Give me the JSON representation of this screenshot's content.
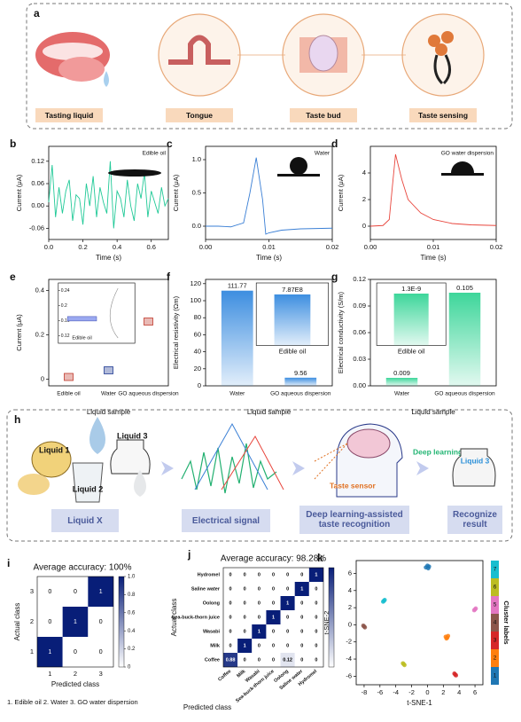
{
  "panel_a": {
    "label": "a",
    "items": [
      "Tasting liquid",
      "Tongue",
      "Taste bud",
      "Taste sensing"
    ]
  },
  "panel_h": {
    "label": "h",
    "liquids": [
      "Liquid 1",
      "Liquid 2",
      "Liquid 3"
    ],
    "taste_sensor": "Taste sensor",
    "deep_learning": "Deep learning",
    "result_liquid": "Liquid 3",
    "steps": [
      "Liquid X",
      "Electrical signal",
      "Deep learning-assisted taste recognition",
      "Recognize result"
    ]
  },
  "chart_data": [
    {
      "type": "line",
      "panel": "b",
      "annotation": "Edible oil",
      "color": "#20c997",
      "x": [
        0,
        0.02,
        0.04,
        0.06,
        0.08,
        0.1,
        0.12,
        0.14,
        0.16,
        0.18,
        0.2,
        0.22,
        0.24,
        0.26,
        0.28,
        0.3,
        0.32,
        0.34,
        0.36,
        0.38,
        0.4,
        0.42,
        0.44,
        0.46,
        0.48,
        0.5,
        0.52,
        0.54,
        0.56,
        0.58,
        0.6,
        0.62,
        0.64,
        0.66,
        0.68,
        0.7
      ],
      "values": [
        0.01,
        0.11,
        -0.03,
        0.05,
        -0.02,
        0.04,
        0.07,
        -0.04,
        0.03,
        0.02,
        -0.05,
        0.06,
        0.0,
        0.08,
        -0.03,
        0.05,
        0.01,
        -0.02,
        0.12,
        -0.06,
        0.04,
        0.02,
        -0.03,
        0.07,
        0.0,
        -0.04,
        0.06,
        0.02,
        0.09,
        -0.03,
        0.04,
        0.01,
        -0.02,
        0.05,
        0.0,
        0.02
      ],
      "xlim": [
        0,
        0.7
      ],
      "ylim": [
        -0.09,
        0.16
      ],
      "xticks": [
        {
          "value": 0,
          "label": "0.0"
        },
        0.2,
        0.4,
        0.6
      ],
      "yticks": [
        -0.06,
        {
          "value": 0,
          "label": "0.00"
        },
        0.06,
        0.12
      ],
      "x_label": "Time (s)",
      "y_label": "Current (μA)"
    },
    {
      "type": "line",
      "panel": "c",
      "annotation": "Water",
      "color": "#3a7fd5",
      "x": [
        0,
        0.002,
        0.004,
        0.006,
        0.007,
        0.008,
        0.009,
        0.0095,
        0.01,
        0.012,
        0.015,
        0.02
      ],
      "values": [
        0,
        0,
        -0.01,
        0.05,
        0.5,
        1.03,
        0.4,
        -0.12,
        -0.1,
        -0.06,
        -0.04,
        -0.03
      ],
      "xlim": [
        0,
        0.02
      ],
      "ylim": [
        -0.2,
        1.2
      ],
      "xticks": [
        {
          "value": 0,
          "label": "0.00"
        },
        0.01,
        0.02
      ],
      "yticks": [
        {
          "value": 0,
          "label": "0.0"
        },
        0.5,
        {
          "value": 1,
          "label": "1.0"
        }
      ],
      "x_label": "Time (s)",
      "y_label": "Current (μA)"
    },
    {
      "type": "line",
      "panel": "d",
      "annotation": "GO water dispersion",
      "color": "#e8453c",
      "x": [
        0,
        0.002,
        0.003,
        0.0035,
        0.004,
        0.005,
        0.006,
        0.008,
        0.01,
        0.013,
        0.016,
        0.02
      ],
      "values": [
        0,
        0.05,
        0.5,
        3,
        5.4,
        3.5,
        2,
        1,
        0.5,
        0.2,
        0.1,
        0.05
      ],
      "xlim": [
        0,
        0.02
      ],
      "ylim": [
        -1,
        6
      ],
      "xticks": [
        {
          "value": 0,
          "label": "0.00"
        },
        0.01,
        0.02
      ],
      "yticks": [
        0,
        2,
        4
      ],
      "x_label": "Time (s)",
      "y_label": "Current (μA)"
    },
    {
      "type": "dot",
      "panel": "e",
      "categories": [
        "Edible oil",
        "Water",
        "GO aqueous dispersion"
      ],
      "values": [
        0.01,
        0.04,
        0.26
      ],
      "colors": [
        "#c0392b",
        "#1f3a93",
        "#c0392b"
      ],
      "ylim": [
        -0.03,
        0.45
      ],
      "yticks": [
        0,
        0.2,
        0.4
      ],
      "x_label": "Liquid sample",
      "y_label": "Current (μA)",
      "inset": {
        "category": "Edible oil",
        "value": 0.165,
        "ylim": [
          0.1,
          0.26
        ],
        "yticks": [
          0.12,
          0.16,
          0.2,
          0.24
        ]
      }
    },
    {
      "type": "bar",
      "panel": "f",
      "categories": [
        "Water",
        "GO aqueous dispersion"
      ],
      "values": [
        111.77,
        9.56
      ],
      "color": "#3d8ee0",
      "ylim": [
        0,
        125
      ],
      "yticks": [
        0,
        20,
        40,
        60,
        80,
        100,
        120
      ],
      "x_label": "Liquid sample",
      "y_label": "Electrical resistivity (Ωm)",
      "inset": {
        "categories": [
          "Edible oil"
        ],
        "values": [
          787000000
        ],
        "value_labels": [
          "7.87E8"
        ],
        "ylim": [
          0,
          800000000
        ]
      }
    },
    {
      "type": "bar",
      "panel": "g",
      "categories": [
        "Water",
        "GO aqueous dispersion"
      ],
      "values": [
        0.009,
        0.105
      ],
      "color": "#3dd69a",
      "ylim": [
        0,
        0.12
      ],
      "yticks": [
        {
          "value": 0,
          "label": "0.00"
        },
        0.03,
        0.06,
        0.09,
        0.12
      ],
      "x_label": "Liquid sample",
      "y_label": "Electrical conductivity (S/m)",
      "inset": {
        "categories": [
          "Edible oil"
        ],
        "values": [
          1.3e-09
        ],
        "value_labels": [
          "1.3E-9"
        ],
        "ylim": [
          0,
          1.3e-09
        ]
      }
    },
    {
      "type": "heatmap",
      "panel": "i",
      "title": "Average accuracy: 100%",
      "categories": [
        "1",
        "2",
        "3"
      ],
      "values": [
        [
          1,
          0,
          0
        ],
        [
          0,
          1,
          0
        ],
        [
          0,
          0,
          1
        ]
      ],
      "clim": [
        0,
        1
      ],
      "cbar_ticks": [
        0,
        0.2,
        0.4,
        0.6,
        0.8,
        {
          "value": 1,
          "label": "1.0"
        }
      ],
      "x_label": "Predicted class",
      "y_label": "Actual class",
      "caption": "1. Edible oil  2. Water  3. GO water dispersion"
    },
    {
      "type": "heatmap",
      "panel": "j",
      "title": "Average accuracy: 98.28%",
      "categories": [
        "Coffee",
        "Milk",
        "Wasabi",
        "Sea-buck-thorn juice",
        "Oolong",
        "Saline water",
        "Hydromel"
      ],
      "values": [
        [
          0.88,
          0,
          0,
          0,
          0.12,
          0,
          0
        ],
        [
          0,
          1,
          0,
          0,
          0,
          0,
          0
        ],
        [
          0,
          0,
          1,
          0,
          0,
          0,
          0
        ],
        [
          0,
          0,
          0,
          1,
          0,
          0,
          0
        ],
        [
          0,
          0,
          0,
          0,
          1,
          0,
          0
        ],
        [
          0,
          0,
          0,
          0,
          0,
          1,
          0
        ],
        [
          0,
          0,
          0,
          0,
          0,
          0,
          1
        ]
      ],
      "clim": [
        0,
        1
      ],
      "x_label": "Predicted class",
      "y_label": "Actual class"
    },
    {
      "type": "scatter",
      "panel": "k",
      "x_label": "t-SNE-1",
      "y_label": "t-SNE-2",
      "colorbar_label": "Cluster labels",
      "xlim": [
        -9,
        7
      ],
      "ylim": [
        -7,
        7.5
      ],
      "xticks": [
        -8,
        -6,
        -4,
        -2,
        0,
        2,
        4,
        6
      ],
      "yticks": [
        -6,
        -4,
        -2,
        0,
        2,
        4,
        6
      ],
      "series": [
        {
          "name": "1",
          "color": "#1f77b4",
          "x": [
            -0.2,
            0,
            0.2,
            0.1
          ],
          "values": [
            6.7,
            6.9,
            6.8,
            6.6
          ]
        },
        {
          "name": "2",
          "color": "#ff7f0e",
          "x": [
            2.3,
            2.5,
            2.6,
            2.4
          ],
          "values": [
            -1.4,
            -1.5,
            -1.3,
            -1.6
          ]
        },
        {
          "name": "3",
          "color": "#d62728",
          "x": [
            3.4,
            3.6,
            3.5
          ],
          "values": [
            -5.7,
            -5.9,
            -5.8
          ]
        },
        {
          "name": "4",
          "color": "#8c564b",
          "x": [
            -8.1,
            -7.9,
            -8
          ],
          "values": [
            -0.1,
            -0.3,
            -0.2
          ]
        },
        {
          "name": "5",
          "color": "#e377c2",
          "x": [
            5.9,
            6.1,
            6
          ],
          "values": [
            1.7,
            1.9,
            1.8
          ]
        },
        {
          "name": "6",
          "color": "#bcbd22",
          "x": [
            -3.1,
            -2.9,
            -3
          ],
          "values": [
            -4.5,
            -4.7,
            -4.6
          ]
        },
        {
          "name": "7",
          "color": "#17becf",
          "x": [
            -5.6,
            -5.4,
            -5.5
          ],
          "values": [
            2.7,
            2.9,
            2.8
          ]
        }
      ]
    }
  ]
}
